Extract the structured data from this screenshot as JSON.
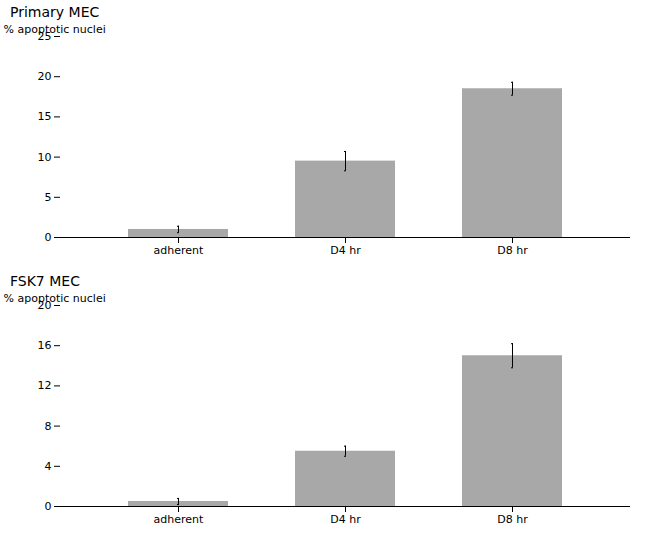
{
  "chart_data": [
    {
      "type": "bar",
      "title": "Primary MEC",
      "categories": [
        "adherent",
        "D4 hr",
        "D8 hr"
      ],
      "values": [
        1.0,
        9.5,
        18.5
      ],
      "errors": [
        0.4,
        1.2,
        0.8
      ],
      "ylabel": "% apoptotic nuclei",
      "ylim": [
        0,
        25
      ],
      "yticks": [
        0,
        5,
        10,
        15,
        20,
        25
      ],
      "color": "#a8a8a8",
      "grid": false
    },
    {
      "type": "bar",
      "title": "FSK7 MEC",
      "categories": [
        "adherent",
        "D4 hr",
        "D8 hr"
      ],
      "values": [
        0.5,
        5.5,
        15.0
      ],
      "errors": [
        0.3,
        0.5,
        1.2
      ],
      "ylabel": "% apoptotic nuclei",
      "ylim": [
        0,
        20
      ],
      "yticks": [
        0,
        4,
        8,
        12,
        16,
        20
      ],
      "color": "#a8a8a8",
      "grid": false
    }
  ]
}
